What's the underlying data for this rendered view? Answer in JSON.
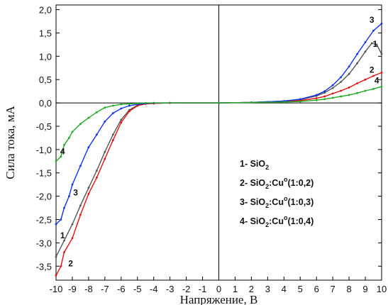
{
  "chart_data": {
    "type": "line",
    "title": "",
    "xlabel": "Напряжение, В",
    "ylabel": "Сила тока, мА",
    "xlim": [
      -10,
      10
    ],
    "ylim": [
      -3.8,
      2.1
    ],
    "x_ticks": [
      -10,
      -9,
      -8,
      -7,
      -6,
      -5,
      -4,
      -3,
      -2,
      -1,
      0,
      1,
      2,
      3,
      4,
      5,
      6,
      7,
      8,
      9,
      10
    ],
    "x_tick_labels": [
      "-10",
      "-9",
      "-8",
      "-7",
      "-6",
      "-5",
      "-4",
      "-3",
      "-2",
      "-1",
      "0",
      "1",
      "2",
      "3",
      "4",
      "5",
      "6",
      "7",
      "8",
      "9",
      "10"
    ],
    "y_ticks": [
      -3.5,
      -3.0,
      -2.5,
      -2.0,
      -1.5,
      -1.0,
      -0.5,
      0.0,
      0.5,
      1.0,
      1.5,
      2.0
    ],
    "y_tick_labels": [
      "-3,5",
      "-3,0",
      "-2,5",
      "-2,0",
      "-1,5",
      "-1,0",
      "-0,5",
      "0,0",
      "0,5",
      "1,0",
      "1,5",
      "2,0"
    ],
    "grid": false,
    "legend": [
      {
        "id": "1",
        "text": "1- SiO",
        "sub": "2"
      },
      {
        "id": "2",
        "text": "2- SiO",
        "sub": "2",
        "rest": ":Cu",
        "sup": "o",
        "tail": "(1:0,2)"
      },
      {
        "id": "3",
        "text": "3- SiO",
        "sub": "2",
        "rest": ":Cu",
        "sup": "o",
        "tail": "(1:0,3)"
      },
      {
        "id": "4",
        "text": "4- SiO",
        "sub": "2",
        "rest": ":Cu",
        "sup": "o",
        "tail": "(1:0,4)"
      }
    ],
    "series": [
      {
        "id": "1",
        "color": "#555555",
        "label": "1",
        "labels": [
          {
            "text": "1",
            "x": -9.6,
            "y": -2.9
          },
          {
            "text": "1",
            "x": 9.6,
            "y": 1.2
          }
        ],
        "points": [
          [
            -10,
            -3.3
          ],
          [
            -9.5,
            -2.95
          ],
          [
            -9,
            -2.6
          ],
          [
            -8.5,
            -2.2
          ],
          [
            -8,
            -1.82
          ],
          [
            -7.5,
            -1.45
          ],
          [
            -7,
            -1.05
          ],
          [
            -6.5,
            -0.68
          ],
          [
            -6,
            -0.36
          ],
          [
            -5.5,
            -0.15
          ],
          [
            -5,
            -0.05
          ],
          [
            -4.5,
            -0.02
          ],
          [
            -4,
            -0.01
          ],
          [
            -3,
            0
          ],
          [
            0,
            0
          ],
          [
            2,
            0.01
          ],
          [
            4,
            0.04
          ],
          [
            5,
            0.07
          ],
          [
            6,
            0.15
          ],
          [
            6.5,
            0.22
          ],
          [
            7,
            0.32
          ],
          [
            7.5,
            0.45
          ],
          [
            8,
            0.62
          ],
          [
            8.5,
            0.85
          ],
          [
            9,
            1.1
          ],
          [
            9.4,
            1.28
          ],
          [
            9.7,
            1.25
          ],
          [
            10,
            1.05
          ]
        ]
      },
      {
        "id": "2",
        "color": "#dd1111",
        "label": "2",
        "labels": [
          {
            "text": "2",
            "x": -9.1,
            "y": -3.5
          },
          {
            "text": "2",
            "x": 9.4,
            "y": 0.65
          }
        ],
        "points": [
          [
            -10,
            -3.7
          ],
          [
            -9.7,
            -3.5
          ],
          [
            -9.5,
            -3.2
          ],
          [
            -9,
            -2.9
          ],
          [
            -8.5,
            -2.4
          ],
          [
            -8,
            -1.95
          ],
          [
            -7.5,
            -1.6
          ],
          [
            -7,
            -1.2
          ],
          [
            -6.5,
            -0.8
          ],
          [
            -6,
            -0.42
          ],
          [
            -5.5,
            -0.18
          ],
          [
            -5,
            -0.06
          ],
          [
            -4.5,
            -0.02
          ],
          [
            -4,
            -0.01
          ],
          [
            -3,
            0
          ],
          [
            0,
            0
          ],
          [
            2,
            0.01
          ],
          [
            4,
            0.03
          ],
          [
            5,
            0.05
          ],
          [
            6,
            0.1
          ],
          [
            6.5,
            0.14
          ],
          [
            7,
            0.2
          ],
          [
            7.5,
            0.26
          ],
          [
            8,
            0.33
          ],
          [
            8.5,
            0.42
          ],
          [
            9,
            0.5
          ],
          [
            9.5,
            0.58
          ],
          [
            10,
            0.65
          ]
        ]
      },
      {
        "id": "3",
        "color": "#1133ee",
        "label": "3",
        "labels": [
          {
            "text": "3",
            "x": -8.8,
            "y": -1.98
          },
          {
            "text": "3",
            "x": 9.4,
            "y": 1.72
          }
        ],
        "points": [
          [
            -10,
            -2.6
          ],
          [
            -9.7,
            -2.5
          ],
          [
            -9.5,
            -2.25
          ],
          [
            -9.2,
            -2.0
          ],
          [
            -9,
            -1.75
          ],
          [
            -8.5,
            -1.35
          ],
          [
            -8,
            -0.95
          ],
          [
            -7.5,
            -0.68
          ],
          [
            -7,
            -0.4
          ],
          [
            -6.5,
            -0.22
          ],
          [
            -6,
            -0.12
          ],
          [
            -5.5,
            -0.06
          ],
          [
            -5,
            -0.03
          ],
          [
            -4.5,
            -0.01
          ],
          [
            -4,
            0
          ],
          [
            0,
            0
          ],
          [
            2,
            0.01
          ],
          [
            4,
            0.04
          ],
          [
            5,
            0.08
          ],
          [
            6,
            0.17
          ],
          [
            6.5,
            0.25
          ],
          [
            7,
            0.38
          ],
          [
            7.5,
            0.55
          ],
          [
            8,
            0.78
          ],
          [
            8.5,
            1.05
          ],
          [
            9,
            1.3
          ],
          [
            9.5,
            1.55
          ],
          [
            10,
            1.7
          ]
        ]
      },
      {
        "id": "4",
        "color": "#22aa22",
        "label": "4",
        "labels": [
          {
            "text": "4",
            "x": -9.6,
            "y": -1.1
          },
          {
            "text": "4",
            "x": 9.7,
            "y": 0.42
          }
        ],
        "points": [
          [
            -10,
            -1.25
          ],
          [
            -9.7,
            -1.15
          ],
          [
            -9.5,
            -0.9
          ],
          [
            -9.2,
            -0.75
          ],
          [
            -9,
            -0.62
          ],
          [
            -8.5,
            -0.45
          ],
          [
            -8,
            -0.32
          ],
          [
            -7.5,
            -0.2
          ],
          [
            -7,
            -0.1
          ],
          [
            -6.5,
            -0.06
          ],
          [
            -6,
            -0.03
          ],
          [
            -5.5,
            -0.02
          ],
          [
            -5,
            -0.01
          ],
          [
            -4.5,
            0
          ],
          [
            0,
            0
          ],
          [
            2,
            0.01
          ],
          [
            4,
            0.02
          ],
          [
            5,
            0.03
          ],
          [
            6,
            0.06
          ],
          [
            6.5,
            0.08
          ],
          [
            7,
            0.11
          ],
          [
            7.5,
            0.14
          ],
          [
            8,
            0.17
          ],
          [
            8.5,
            0.21
          ],
          [
            9,
            0.26
          ],
          [
            9.5,
            0.3
          ],
          [
            10,
            0.35
          ]
        ]
      }
    ]
  }
}
